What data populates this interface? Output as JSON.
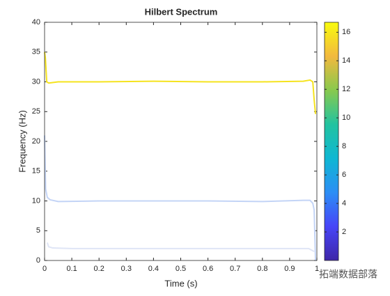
{
  "chart_data": {
    "type": "line",
    "title": "Hilbert Spectrum",
    "x_label": "Time (s)",
    "y_label": "Frequency (Hz)",
    "series": [
      {
        "color": "#f5e31e",
        "x": [
          0,
          0.003,
          0.008,
          0.015,
          0.05,
          0.2,
          0.4,
          0.6,
          0.8,
          0.95,
          0.975,
          0.985,
          0.99,
          0.995
        ],
        "values": [
          35,
          34,
          30,
          29.8,
          30,
          30,
          30.1,
          30,
          30,
          30.1,
          30.3,
          30,
          27,
          24.6
        ]
      },
      {
        "color": "#c3d4f6",
        "x": [
          0,
          0.004,
          0.01,
          0.02,
          0.05,
          0.2,
          0.4,
          0.6,
          0.8,
          0.95,
          0.975,
          0.985,
          0.99,
          0.995
        ],
        "values": [
          21,
          12,
          10.6,
          10.2,
          9.9,
          10,
          10,
          10,
          9.9,
          10.1,
          10.1,
          9.6,
          8.5,
          0
        ]
      },
      {
        "color": "#dfe5f6",
        "x": [
          0.01,
          0.015,
          0.03,
          0.1,
          0.3,
          0.5,
          0.7,
          0.9,
          0.97,
          0.99
        ],
        "values": [
          3,
          2.3,
          2.1,
          2,
          2,
          2,
          2,
          2,
          2,
          1.5
        ]
      }
    ],
    "xlim": [
      0,
      1
    ],
    "xticks": [
      0,
      0.1,
      0.2,
      0.3,
      0.4,
      0.5,
      0.6,
      0.7,
      0.8,
      0.9,
      1
    ],
    "ylim": [
      0,
      40
    ],
    "yticks": [
      0,
      5,
      10,
      15,
      20,
      25,
      30,
      35,
      40
    ],
    "colorbar": {
      "clim": [
        0,
        16.7
      ],
      "ticks": [
        2,
        4,
        6,
        8,
        10,
        12,
        14,
        16
      ],
      "colormap": [
        "#3e26a8",
        "#4745f8",
        "#2c8ef5",
        "#0fb7d3",
        "#22c3a0",
        "#88c94e",
        "#f2b93e",
        "#f9fb0e"
      ]
    },
    "watermark": "拓端数据部落"
  }
}
